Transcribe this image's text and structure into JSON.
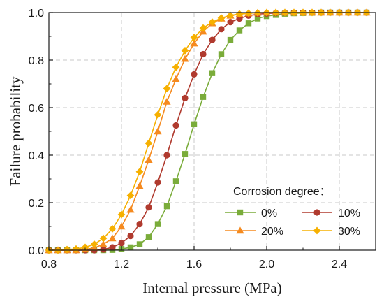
{
  "chart_data": {
    "type": "line",
    "title": "",
    "xlabel": "Internal pressure (MPa)",
    "ylabel": "Failure probability",
    "xlim": [
      0.8,
      2.6
    ],
    "ylim": [
      0.0,
      1.0
    ],
    "x_ticks": [
      "0.8",
      "1.2",
      "1.6",
      "2.0",
      "2.4"
    ],
    "y_ticks": [
      "0.0",
      "0.2",
      "0.4",
      "0.6",
      "0.8",
      "1.0"
    ],
    "grid": true,
    "legend": {
      "title": "Corrosion degree：",
      "placement": "bottom-right"
    },
    "series": [
      {
        "name": "0%",
        "color": "#7aac3a",
        "marker": "square",
        "x": [
          0.8,
          0.85,
          0.9,
          0.95,
          1.0,
          1.05,
          1.1,
          1.15,
          1.2,
          1.25,
          1.3,
          1.35,
          1.4,
          1.45,
          1.5,
          1.55,
          1.6,
          1.65,
          1.7,
          1.75,
          1.8,
          1.85,
          1.9,
          1.95,
          2.0,
          2.05,
          2.1,
          2.15,
          2.2,
          2.25,
          2.3,
          2.35,
          2.4,
          2.45,
          2.5,
          2.55
        ],
        "values": [
          0.0,
          0.0,
          0.0,
          0.0,
          0.0,
          0.0,
          0.0,
          0.001,
          0.005,
          0.012,
          0.025,
          0.055,
          0.11,
          0.185,
          0.29,
          0.405,
          0.53,
          0.645,
          0.745,
          0.825,
          0.885,
          0.925,
          0.955,
          0.975,
          0.985,
          0.99,
          0.995,
          0.997,
          0.998,
          0.999,
          1.0,
          1.0,
          1.0,
          1.0,
          1.0,
          1.0
        ]
      },
      {
        "name": "10%",
        "color": "#b03a2e",
        "marker": "circle",
        "x": [
          0.8,
          0.85,
          0.9,
          0.95,
          1.0,
          1.05,
          1.1,
          1.15,
          1.2,
          1.25,
          1.3,
          1.35,
          1.4,
          1.45,
          1.5,
          1.55,
          1.6,
          1.65,
          1.7,
          1.75,
          1.8,
          1.85,
          1.9,
          1.95,
          2.0,
          2.05,
          2.1,
          2.15,
          2.2,
          2.25,
          2.3,
          2.35,
          2.4,
          2.45,
          2.5,
          2.55
        ],
        "values": [
          0.0,
          0.0,
          0.0,
          0.0,
          0.0,
          0.0,
          0.003,
          0.012,
          0.03,
          0.06,
          0.11,
          0.18,
          0.285,
          0.4,
          0.525,
          0.64,
          0.74,
          0.825,
          0.885,
          0.93,
          0.96,
          0.975,
          0.987,
          0.993,
          0.996,
          0.998,
          0.999,
          1.0,
          1.0,
          1.0,
          1.0,
          1.0,
          1.0,
          1.0,
          1.0,
          1.0
        ]
      },
      {
        "name": "20%",
        "color": "#f58a1f",
        "marker": "triangle",
        "x": [
          0.8,
          0.85,
          0.9,
          0.95,
          1.0,
          1.05,
          1.1,
          1.15,
          1.2,
          1.25,
          1.3,
          1.35,
          1.4,
          1.45,
          1.5,
          1.55,
          1.6,
          1.65,
          1.7,
          1.75,
          1.8,
          1.85,
          1.9,
          1.95,
          2.0,
          2.05,
          2.1,
          2.15,
          2.2,
          2.25,
          2.3,
          2.35,
          2.4,
          2.45,
          2.5,
          2.55
        ],
        "values": [
          0.0,
          0.0,
          0.0,
          0.0,
          0.003,
          0.01,
          0.025,
          0.05,
          0.1,
          0.17,
          0.27,
          0.38,
          0.5,
          0.625,
          0.72,
          0.805,
          0.87,
          0.92,
          0.955,
          0.975,
          0.987,
          0.993,
          0.997,
          0.999,
          1.0,
          1.0,
          1.0,
          1.0,
          1.0,
          1.0,
          1.0,
          1.0,
          1.0,
          1.0,
          1.0,
          1.0
        ]
      },
      {
        "name": "30%",
        "color": "#f6b000",
        "marker": "diamond",
        "x": [
          0.8,
          0.85,
          0.9,
          0.95,
          1.0,
          1.05,
          1.1,
          1.15,
          1.2,
          1.25,
          1.3,
          1.35,
          1.4,
          1.45,
          1.5,
          1.55,
          1.6,
          1.65,
          1.7,
          1.75,
          1.8,
          1.85,
          1.9,
          1.95,
          2.0,
          2.05,
          2.1,
          2.15,
          2.2,
          2.25,
          2.3,
          2.35,
          2.4,
          2.45,
          2.5,
          2.55
        ],
        "values": [
          0.0,
          0.0,
          0.003,
          0.005,
          0.012,
          0.025,
          0.05,
          0.09,
          0.15,
          0.23,
          0.33,
          0.45,
          0.57,
          0.68,
          0.77,
          0.84,
          0.895,
          0.935,
          0.96,
          0.977,
          0.988,
          0.994,
          0.997,
          0.999,
          1.0,
          1.0,
          1.0,
          1.0,
          1.0,
          1.0,
          1.0,
          1.0,
          1.0,
          1.0,
          1.0,
          1.0
        ]
      }
    ]
  }
}
